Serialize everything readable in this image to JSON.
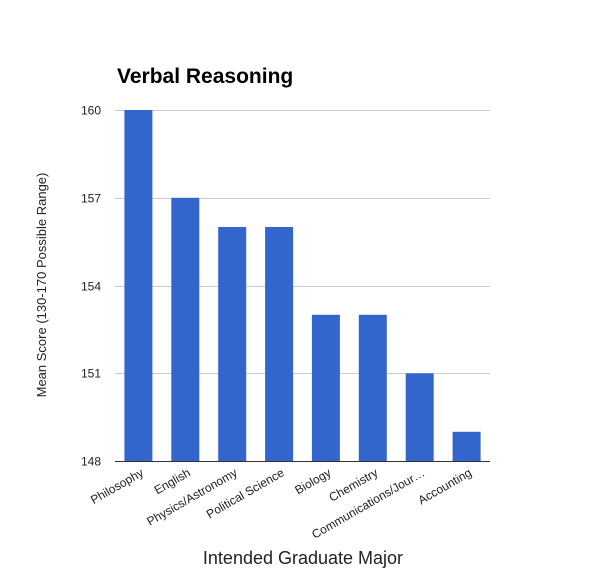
{
  "chart_data": {
    "type": "bar",
    "title": "Verbal Reasoning",
    "xlabel": "Intended Graduate Major",
    "ylabel": "Mean Score (130-170 Possible Range)",
    "categories": [
      "Philosophy",
      "English",
      "Physics/Astronomy",
      "Political Science",
      "Biology",
      "Chemistry",
      "Communications/Jour…",
      "Accounting"
    ],
    "values": [
      160,
      157,
      156,
      156,
      153,
      153,
      151,
      149
    ],
    "ylim": [
      148,
      160
    ],
    "yticks": [
      "148",
      "151",
      "154",
      "157",
      "160"
    ],
    "grid": true,
    "legend": "none",
    "bar_color": "#3366cc",
    "grid_color": "#cccccc",
    "axis_color": "#333333"
  }
}
